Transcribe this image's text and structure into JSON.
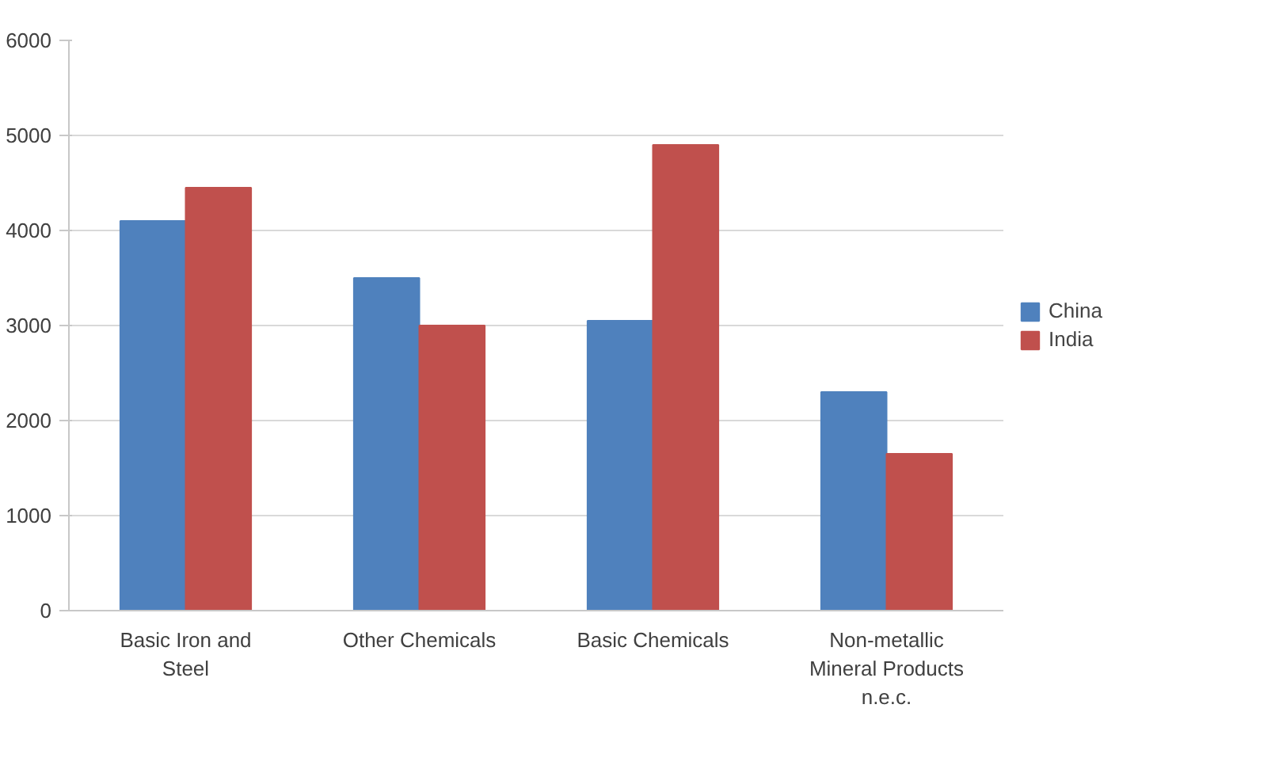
{
  "chart_data": {
    "type": "bar",
    "categories": [
      "Basic Iron and Steel",
      "Other Chemicals",
      "Basic Chemicals",
      "Non-metallic Mineral Products n.e.c."
    ],
    "series": [
      {
        "name": "China",
        "color": "#4f81bd",
        "values": [
          4100,
          3500,
          3050,
          2300
        ]
      },
      {
        "name": "India",
        "color": "#c0504d",
        "values": [
          4450,
          3000,
          4900,
          1650
        ]
      }
    ],
    "ylim": [
      0,
      6000
    ],
    "yticks": [
      0,
      1000,
      2000,
      3000,
      4000,
      5000,
      6000
    ],
    "grid": "y",
    "legend": "right"
  }
}
